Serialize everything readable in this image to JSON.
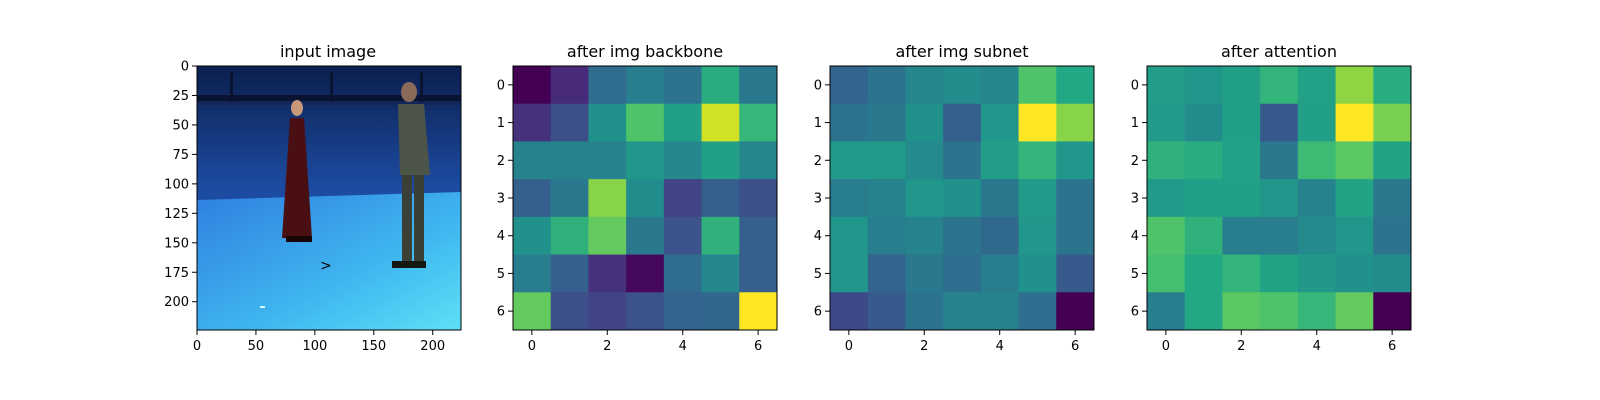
{
  "chart_data": [
    {
      "type": "image",
      "title": "input image",
      "xlim": [
        0,
        224
      ],
      "ylim": [
        224,
        0
      ],
      "xticks": [
        0,
        50,
        100,
        150,
        200
      ],
      "yticks": [
        0,
        25,
        50,
        75,
        100,
        125,
        150,
        175,
        200
      ],
      "content": "photo: two people standing in a blue-floored motion-capture studio"
    },
    {
      "type": "heatmap",
      "title": "after img backbone",
      "colormap": "viridis",
      "xticks": [
        0,
        2,
        4,
        6
      ],
      "yticks": [
        0,
        1,
        2,
        3,
        4,
        5,
        6
      ],
      "values": [
        [
          0.0,
          0.12,
          0.35,
          0.42,
          0.38,
          0.62,
          0.4
        ],
        [
          0.14,
          0.24,
          0.5,
          0.72,
          0.56,
          0.93,
          0.66
        ],
        [
          0.44,
          0.44,
          0.44,
          0.52,
          0.46,
          0.56,
          0.46
        ],
        [
          0.3,
          0.4,
          0.82,
          0.48,
          0.2,
          0.3,
          0.24
        ],
        [
          0.5,
          0.64,
          0.76,
          0.4,
          0.25,
          0.64,
          0.3
        ],
        [
          0.42,
          0.3,
          0.14,
          0.02,
          0.35,
          0.46,
          0.3
        ],
        [
          0.76,
          0.24,
          0.2,
          0.25,
          0.32,
          0.33,
          1.0
        ]
      ]
    },
    {
      "type": "heatmap",
      "title": "after img subnet",
      "colormap": "viridis",
      "xticks": [
        0,
        2,
        4,
        6
      ],
      "yticks": [
        0,
        1,
        2,
        3,
        4,
        5,
        6
      ],
      "values": [
        [
          0.32,
          0.38,
          0.46,
          0.48,
          0.45,
          0.72,
          0.6
        ],
        [
          0.38,
          0.4,
          0.5,
          0.3,
          0.52,
          1.0,
          0.82
        ],
        [
          0.54,
          0.54,
          0.47,
          0.38,
          0.55,
          0.65,
          0.52
        ],
        [
          0.42,
          0.44,
          0.52,
          0.5,
          0.4,
          0.54,
          0.38
        ],
        [
          0.52,
          0.42,
          0.44,
          0.38,
          0.34,
          0.52,
          0.38
        ],
        [
          0.52,
          0.32,
          0.4,
          0.36,
          0.42,
          0.5,
          0.28
        ],
        [
          0.22,
          0.28,
          0.38,
          0.44,
          0.44,
          0.36,
          0.0
        ]
      ]
    },
    {
      "type": "heatmap",
      "title": "after attention",
      "colormap": "viridis",
      "xticks": [
        0,
        2,
        4,
        6
      ],
      "yticks": [
        0,
        1,
        2,
        3,
        4,
        5,
        6
      ],
      "values": [
        [
          0.55,
          0.52,
          0.56,
          0.65,
          0.57,
          0.83,
          0.62
        ],
        [
          0.54,
          0.48,
          0.56,
          0.28,
          0.56,
          1.0,
          0.8
        ],
        [
          0.64,
          0.62,
          0.57,
          0.4,
          0.68,
          0.74,
          0.58
        ],
        [
          0.54,
          0.56,
          0.56,
          0.52,
          0.44,
          0.58,
          0.4
        ],
        [
          0.72,
          0.64,
          0.42,
          0.42,
          0.47,
          0.52,
          0.38
        ],
        [
          0.7,
          0.6,
          0.65,
          0.58,
          0.53,
          0.5,
          0.48
        ],
        [
          0.42,
          0.6,
          0.74,
          0.72,
          0.66,
          0.76,
          0.0
        ]
      ]
    }
  ]
}
